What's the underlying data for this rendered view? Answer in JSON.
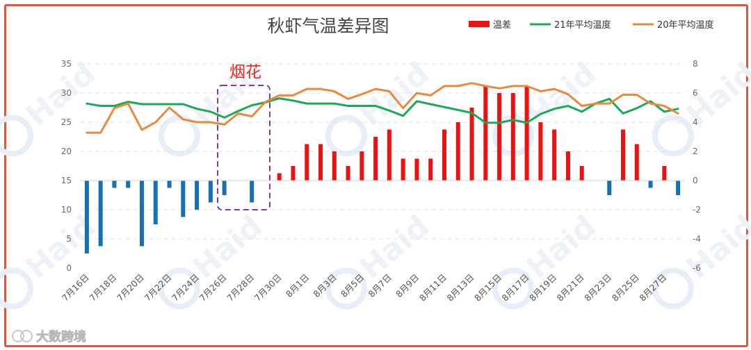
{
  "chart_data": {
    "type": "bar+line",
    "title": "秋虾气温差异图",
    "legend": {
      "placement": "top-right"
    },
    "x": [
      "7月16日",
      "7月17日",
      "7月18日",
      "7月19日",
      "7月20日",
      "7月21日",
      "7月22日",
      "7月23日",
      "7月24日",
      "7月25日",
      "7月26日",
      "7月27日",
      "7月28日",
      "7月29日",
      "7月30日",
      "7月31日",
      "8月1日",
      "8月2日",
      "8月3日",
      "8月4日",
      "8月5日",
      "8月6日",
      "8月7日",
      "8月8日",
      "8月9日",
      "8月10日",
      "8月11日",
      "8月12日",
      "8月13日",
      "8月14日",
      "8月15日",
      "8月16日",
      "8月17日",
      "8月18日",
      "8月19日",
      "8月20日",
      "8月21日",
      "8月22日",
      "8月23日",
      "8月24日",
      "8月25日",
      "8月26日",
      "8月27日",
      "8月28日"
    ],
    "x_tick_labels": [
      "7月16日",
      "7月18日",
      "7月20日",
      "7月22日",
      "7月24日",
      "7月26日",
      "7月28日",
      "7月30日",
      "8月1日",
      "8月3日",
      "8月5日",
      "8月7日",
      "8月9日",
      "8月11日",
      "8月13日",
      "8月15日",
      "8月17日",
      "8月19日",
      "8月21日",
      "8月23日",
      "8月25日",
      "8月27日"
    ],
    "y_left": {
      "range": [
        0,
        35
      ],
      "ticks": [
        0,
        5,
        10,
        15,
        20,
        25,
        30,
        35
      ]
    },
    "y_right": {
      "range": [
        -6,
        8
      ],
      "ticks": [
        -6,
        -4,
        -2,
        0,
        2,
        4,
        6,
        8
      ]
    },
    "grid": true,
    "series": [
      {
        "name": "温差",
        "type": "bar",
        "axis": "right",
        "color_positive": "#ee1111",
        "color_negative": "#1670b8",
        "values": [
          -5,
          -4.5,
          -0.5,
          -0.5,
          -4.5,
          -3,
          -0.5,
          -2.5,
          -2,
          -1.5,
          -1,
          0,
          -1.5,
          0,
          0.5,
          1,
          2.5,
          2.5,
          2,
          1,
          2,
          3,
          3.5,
          1.5,
          1.5,
          1.5,
          3.5,
          4,
          5,
          6.5,
          6,
          6,
          6.5,
          4,
          3.5,
          2,
          1,
          0,
          -1,
          3.5,
          2.5,
          -0.5,
          1,
          -1
        ]
      },
      {
        "name": "21年平均温度",
        "type": "line",
        "axis": "left",
        "color": "#1aaa55",
        "values": [
          28.2,
          27.8,
          27.8,
          28.5,
          28.1,
          28.1,
          28.1,
          28.1,
          27.3,
          26.8,
          25.8,
          26.9,
          27.9,
          28.4,
          29.1,
          28.7,
          28.2,
          28.2,
          28.2,
          27.8,
          27.8,
          27.8,
          27.0,
          26.1,
          28.6,
          28.1,
          27.6,
          27.1,
          26.6,
          24.9,
          24.9,
          25.4,
          24.9,
          26.4,
          27.3,
          27.8,
          26.8,
          28.2,
          29.0,
          26.5,
          27.4,
          28.6,
          26.8,
          27.3
        ]
      },
      {
        "name": "20年平均温度",
        "type": "line",
        "axis": "left",
        "color": "#e8893c",
        "values": [
          23.2,
          23.2,
          27.4,
          28.2,
          23.7,
          25.0,
          27.5,
          25.5,
          25.0,
          25.0,
          24.6,
          26.5,
          26.0,
          28.5,
          29.6,
          29.6,
          30.7,
          30.7,
          30.3,
          29.0,
          29.8,
          30.7,
          30.3,
          27.4,
          30.0,
          29.6,
          31.2,
          31.2,
          31.7,
          31.2,
          30.8,
          31.2,
          31.2,
          30.3,
          30.7,
          29.8,
          27.8,
          28.2,
          28.2,
          29.7,
          29.7,
          28.2,
          27.8,
          26.5
        ]
      }
    ],
    "annotations": [
      {
        "text": "烟花",
        "style": "dashed box",
        "color": "#7a3f98"
      }
    ],
    "watermark": "Haid",
    "footer_logo": "大数跨境"
  }
}
